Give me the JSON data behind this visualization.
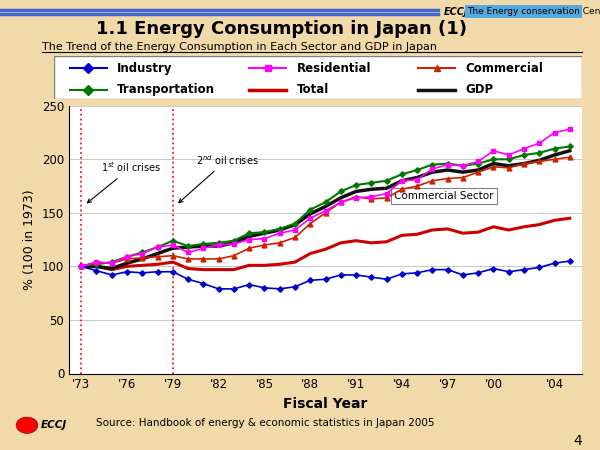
{
  "title": "1.1 Energy Consumption in Japan (1)",
  "subtitle": "The Trend of the Energy Consumption in Each Sector and GDP in Japan",
  "xlabel": "Fiscal Year",
  "ylabel": "% (100 in 1973)",
  "source": "Source: Handbook of energy & economic statistics in Japan 2005",
  "header_text": "The Energy conservation Center Japan",
  "page_number": "4",
  "years": [
    1973,
    1974,
    1975,
    1976,
    1977,
    1978,
    1979,
    1980,
    1981,
    1982,
    1983,
    1984,
    1985,
    1986,
    1987,
    1988,
    1989,
    1990,
    1991,
    1992,
    1993,
    1994,
    1995,
    1996,
    1997,
    1998,
    1999,
    2000,
    2001,
    2002,
    2003,
    2004,
    2005
  ],
  "industry": [
    100,
    96,
    92,
    95,
    94,
    95,
    95,
    88,
    84,
    79,
    79,
    83,
    80,
    79,
    81,
    87,
    88,
    92,
    92,
    90,
    88,
    93,
    94,
    97,
    97,
    92,
    94,
    98,
    95,
    97,
    99,
    103,
    105
  ],
  "residential": [
    100,
    104,
    103,
    109,
    112,
    118,
    120,
    113,
    117,
    120,
    121,
    125,
    126,
    131,
    134,
    145,
    152,
    160,
    164,
    165,
    168,
    180,
    181,
    191,
    195,
    194,
    198,
    208,
    204,
    210,
    215,
    225,
    228
  ],
  "commercial": [
    100,
    104,
    103,
    107,
    108,
    109,
    110,
    107,
    107,
    107,
    110,
    117,
    120,
    122,
    127,
    140,
    150,
    160,
    165,
    163,
    164,
    172,
    175,
    180,
    182,
    183,
    188,
    193,
    192,
    196,
    198,
    200,
    202
  ],
  "transportation": [
    100,
    102,
    104,
    109,
    113,
    118,
    124,
    119,
    121,
    122,
    124,
    131,
    132,
    135,
    140,
    153,
    160,
    170,
    176,
    178,
    180,
    186,
    190,
    195,
    196,
    194,
    196,
    200,
    200,
    204,
    206,
    210,
    212
  ],
  "total": [
    100,
    100,
    97,
    100,
    101,
    102,
    104,
    98,
    97,
    97,
    97,
    101,
    101,
    102,
    104,
    112,
    116,
    122,
    124,
    122,
    123,
    129,
    130,
    134,
    135,
    131,
    132,
    137,
    134,
    137,
    139,
    143,
    145
  ],
  "gdp": [
    100,
    100,
    98,
    103,
    107,
    112,
    117,
    118,
    119,
    119,
    122,
    128,
    131,
    134,
    139,
    149,
    156,
    164,
    170,
    172,
    173,
    180,
    183,
    188,
    190,
    188,
    190,
    196,
    194,
    196,
    199,
    204,
    208
  ],
  "industry_color": "#0000cc",
  "residential_color": "#ff00ff",
  "commercial_color": "#cc2200",
  "transportation_color": "#007700",
  "total_color": "#cc0000",
  "gdp_color": "#111111",
  "background_color": "#f2d9aa",
  "plot_bg_color": "#ffffff",
  "oil_crisis_1": 1973,
  "oil_crisis_2": 1979,
  "ylim": [
    0,
    250
  ],
  "yticks": [
    0,
    50,
    100,
    150,
    200,
    250
  ],
  "xtick_labels": [
    "'73",
    "'76",
    "'79",
    "'82",
    "'85",
    "'88",
    "'91",
    "'94",
    "'97",
    "'00",
    "'04"
  ],
  "xtick_positions": [
    1973,
    1976,
    1979,
    1982,
    1985,
    1988,
    1991,
    1994,
    1997,
    2000,
    2004
  ],
  "header_line_color": "#4466cc",
  "header_box_color": "#55aadd"
}
